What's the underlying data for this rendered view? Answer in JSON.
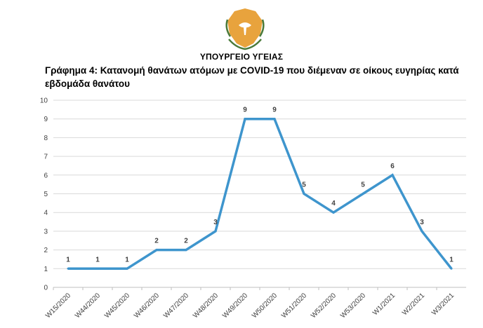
{
  "header": {
    "ministry": "ΥΠΟΥΡΓΕΙΟ ΥΓΕΙΑΣ",
    "title": "Γράφημα 4: Κατανομή θανάτων ατόμων με COVID-19 που διέμεναν σε οίκους ευγηρίας κατά εβδομάδα θανάτου",
    "emblem_icon": "cyprus-coat-of-arms-icon"
  },
  "chart_data": {
    "type": "line",
    "title": "Γράφημα 4: Κατανομή θανάτων ατόμων με COVID-19 που διέμεναν σε οίκους ευγηρίας κατά εβδομάδα θανάτου",
    "xlabel": "",
    "ylabel": "",
    "categories": [
      "W15/2020",
      "W44/2020",
      "W45/2020",
      "W46/2020",
      "W47/2020",
      "W48/2020",
      "W49/2020",
      "W50/2020",
      "W51/2020",
      "W52/2020",
      "W53/2020",
      "W1/2021",
      "W2/2021",
      "W3/2021"
    ],
    "values": [
      1,
      1,
      1,
      2,
      2,
      3,
      9,
      9,
      5,
      4,
      5,
      6,
      3,
      1
    ],
    "ylim": [
      0,
      10
    ],
    "yticks": [
      0,
      1,
      2,
      3,
      4,
      5,
      6,
      7,
      8,
      9,
      10
    ],
    "grid": true,
    "legend": "none",
    "data_labels": true,
    "colors": {
      "line": "#3e95cd",
      "grid": "#d9d9d9",
      "axis": "#bfbfbf",
      "emblem": "#e8a33d",
      "wreath": "#4a7a3a"
    }
  }
}
